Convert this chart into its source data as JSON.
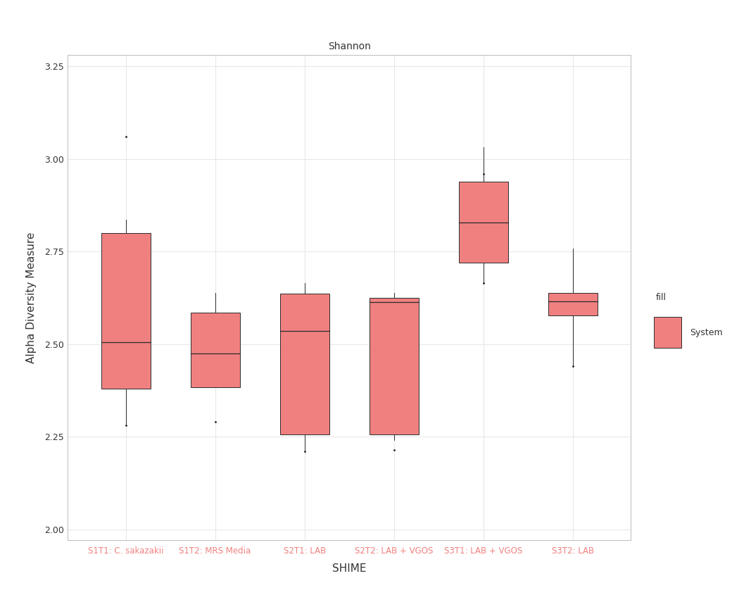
{
  "title": "Shannon",
  "xlabel": "SHIME",
  "ylabel": "Alpha Diversity Measure",
  "legend_label": "fill",
  "legend_entry": "System",
  "box_color": "#F08080",
  "box_edge_color": "#2b2b2b",
  "median_color": "#2b2b2b",
  "whisker_color": "#2b2b2b",
  "flier_color": "#1a1a1a",
  "background_color": "#FFFFFF",
  "panel_bg": "#FFFFFF",
  "title_bg": "#DCDCDC",
  "grid_color": "#E8E8E8",
  "xlabels": [
    "S1T1: C. sakazakii",
    "S1T2: MRS Media",
    "S2T1: LAB",
    "S2T2: LAB + VGOS",
    "S3T1: LAB + VGOS",
    "S3T2: LAB"
  ],
  "xlabel_color": "#F08080",
  "ylim": [
    1.97,
    3.28
  ],
  "yticks": [
    2.0,
    2.25,
    2.5,
    2.75,
    3.0,
    3.25
  ],
  "boxes": [
    {
      "q1": 2.38,
      "median": 2.505,
      "q3": 2.8,
      "whislo": 2.285,
      "whishi": 2.835,
      "fliers_hi": [
        3.06
      ],
      "fliers_lo": [
        2.28
      ]
    },
    {
      "q1": 2.383,
      "median": 2.475,
      "q3": 2.585,
      "whislo": 2.383,
      "whishi": 2.638,
      "fliers_hi": [],
      "fliers_lo": [
        2.29
      ]
    },
    {
      "q1": 2.255,
      "median": 2.535,
      "q3": 2.637,
      "whislo": 2.215,
      "whishi": 2.665,
      "fliers_hi": [],
      "fliers_lo": [
        2.21
      ]
    },
    {
      "q1": 2.255,
      "median": 2.613,
      "q3": 2.625,
      "whislo": 2.24,
      "whishi": 2.638,
      "fliers_hi": [],
      "fliers_lo": [
        2.215
      ]
    },
    {
      "q1": 2.72,
      "median": 2.828,
      "q3": 2.938,
      "whislo": 2.665,
      "whishi": 3.032,
      "fliers_hi": [
        2.96
      ],
      "fliers_lo": [
        2.665
      ]
    },
    {
      "q1": 2.577,
      "median": 2.615,
      "q3": 2.638,
      "whislo": 2.44,
      "whishi": 2.758,
      "fliers_hi": [],
      "fliers_lo": [
        2.44
      ]
    }
  ]
}
